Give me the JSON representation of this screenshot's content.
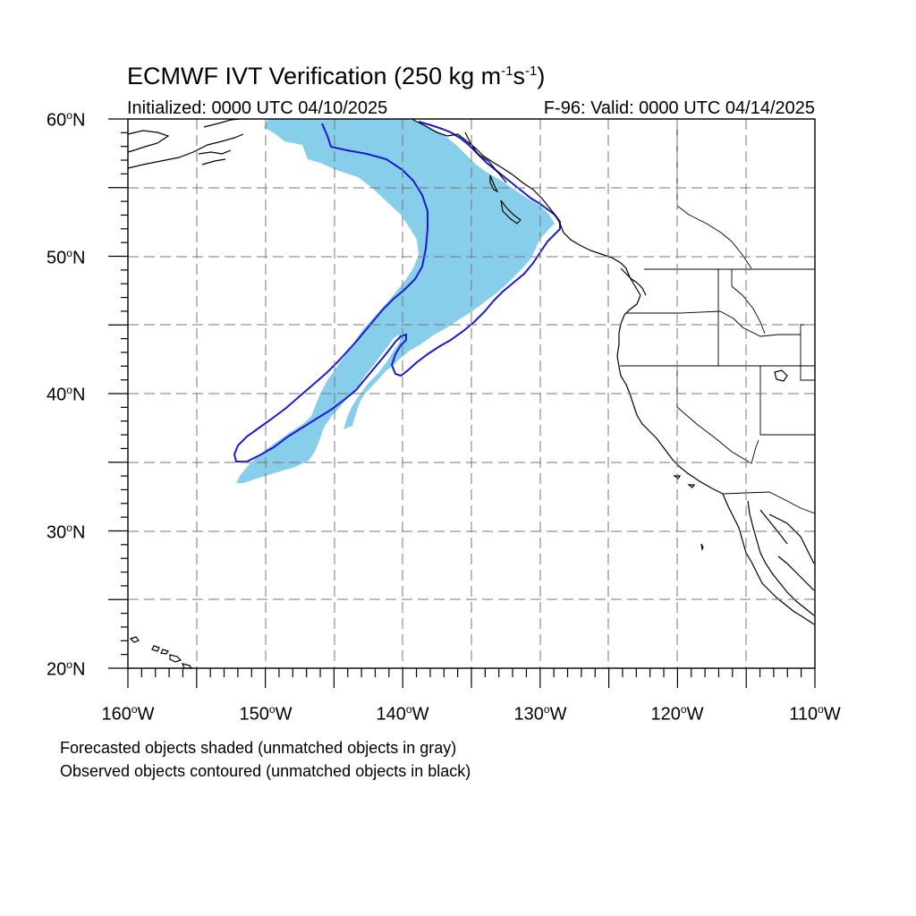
{
  "title": {
    "main": "ECMWF IVT Verification (250 kg m",
    "exp1": "-1",
    "mid": "s",
    "exp2": "-1",
    "close": ")"
  },
  "subtitle": {
    "initialized": "Initialized: 0000 UTC 04/10/2025",
    "valid": "F-96: Valid: 0000 UTC 04/14/2025"
  },
  "map": {
    "projection": "cylindrical equidistant",
    "lon_range": [
      -160,
      -110
    ],
    "lat_range": [
      20,
      60
    ],
    "gridlines": "dashed, every 5 degrees",
    "lat_labels": [
      "60",
      "50",
      "40",
      "30",
      "20"
    ],
    "lon_labels": [
      "160",
      "150",
      "140",
      "130",
      "120",
      "110"
    ],
    "lat_suffix": "N",
    "lon_suffix": "W",
    "degree_symbol": "o"
  },
  "objects": {
    "forecast_shaded_color": "#87CEEB",
    "observed_contour_color": "#1a1ad6"
  },
  "notes": {
    "line1": "Forecasted objects shaded (unmatched objects in gray)",
    "line2": "Observed objects contoured (unmatched objects in black)"
  }
}
